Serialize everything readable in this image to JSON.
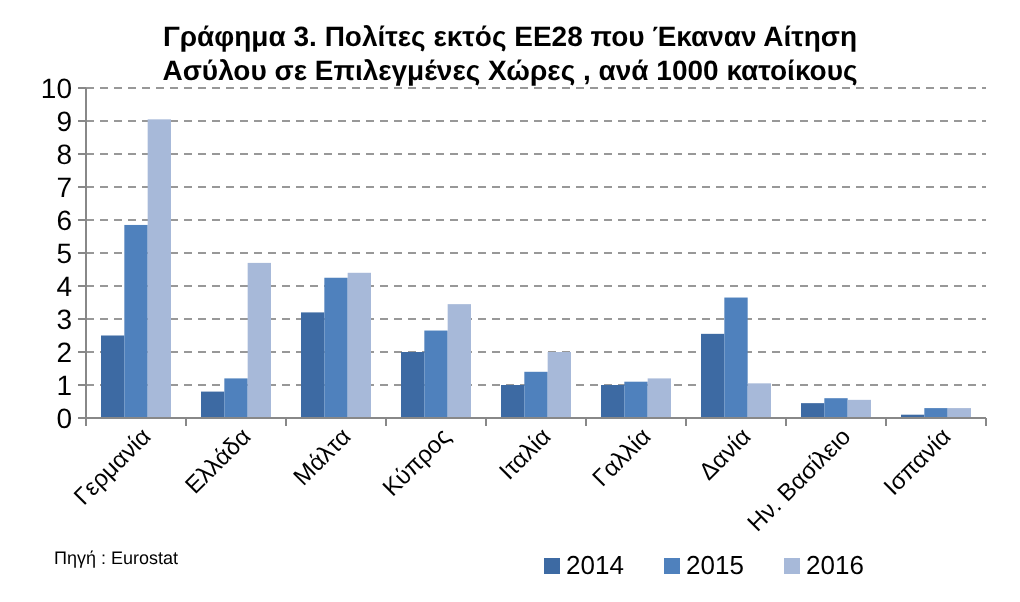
{
  "chart_data": {
    "type": "bar",
    "title": "Γράφημα 3. Πολίτες εκτός ΕΕ28 που Έκαναν Αίτηση\nΑσύλου  σε Επιλεγμένες Χώρες , ανά 1000 κατοίκους",
    "categories": [
      "Γερμανία",
      "Ελλάδα",
      "Μάλτα",
      "Κύπρος",
      "Ιταλία",
      "Γαλλία",
      "Δανία",
      "Ην. Βασίλειο",
      "Ισπανία"
    ],
    "series": [
      {
        "name": "2014",
        "color": "#3d6aa3",
        "values": [
          2.5,
          0.8,
          3.2,
          2.0,
          1.0,
          1.0,
          2.55,
          0.45,
          0.1
        ]
      },
      {
        "name": "2015",
        "color": "#4f81bd",
        "values": [
          5.85,
          1.2,
          4.25,
          2.65,
          1.4,
          1.1,
          3.65,
          0.6,
          0.3
        ]
      },
      {
        "name": "2016",
        "color": "#a7b9d9",
        "values": [
          9.05,
          4.7,
          4.4,
          3.45,
          2.0,
          1.2,
          1.05,
          0.55,
          0.3
        ]
      }
    ],
    "ylim": [
      0,
      10
    ],
    "yticks": [
      0,
      1,
      2,
      3,
      4,
      5,
      6,
      7,
      8,
      9,
      10
    ],
    "grid": "y",
    "legend": "bottom right",
    "annotations": [
      "Πηγή : Eurostat"
    ]
  }
}
